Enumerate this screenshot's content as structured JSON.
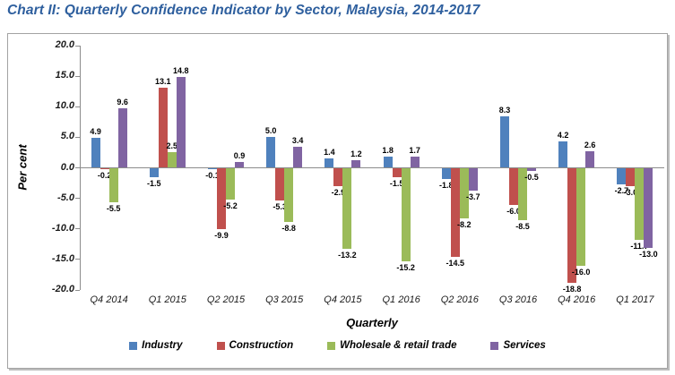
{
  "title": "Chart II: Quarterly Confidence Indicator by Sector, Malaysia, 2014-2017",
  "colors": {
    "title": "#2E5F9E",
    "axis": "#8c8c8c",
    "frame_border": "#a3a3a3",
    "industry": "#4F81BD",
    "construction": "#C0504D",
    "wholesale_retail": "#9BBB59",
    "services": "#8064A2"
  },
  "chart_data": {
    "type": "bar",
    "title": "Chart II: Quarterly Confidence Indicator by Sector, Malaysia, 2014-2017",
    "xlabel": "Quarterly",
    "ylabel": "Per cent",
    "ylim": [
      -20,
      20
    ],
    "ytick_interval": 5,
    "yticks": [
      20,
      15,
      10,
      5,
      0,
      -5,
      -10,
      -15,
      -20
    ],
    "ytick_format": "one_decimal",
    "grid": false,
    "legend_position": "bottom",
    "data_labels": "outside_end",
    "categories": [
      "Q4 2014",
      "Q1 2015",
      "Q2 2015",
      "Q3 2015",
      "Q4 2015",
      "Q1 2016",
      "Q2 2016",
      "Q3 2016",
      "Q4 2016",
      "Q1 2017"
    ],
    "series": [
      {
        "name": "Industry",
        "color": "#4F81BD",
        "values": [
          4.9,
          -1.5,
          -0.1,
          5.0,
          1.4,
          1.8,
          -1.8,
          8.3,
          4.2,
          -2.7
        ]
      },
      {
        "name": "Construction",
        "color": "#C0504D",
        "values": [
          -0.2,
          13.1,
          -9.9,
          -5.3,
          -2.9,
          -1.5,
          -14.5,
          -6.0,
          -18.8,
          -3.0
        ]
      },
      {
        "name": "Wholesale & retail trade",
        "color": "#9BBB59",
        "values": [
          -5.5,
          2.5,
          -5.2,
          -8.8,
          -13.2,
          -15.2,
          -8.2,
          -8.5,
          -16.0,
          -11.7
        ]
      },
      {
        "name": "Services",
        "color": "#8064A2",
        "values": [
          9.6,
          14.8,
          0.9,
          3.4,
          1.2,
          1.7,
          -3.7,
          -0.5,
          2.6,
          -13.0
        ]
      }
    ]
  }
}
